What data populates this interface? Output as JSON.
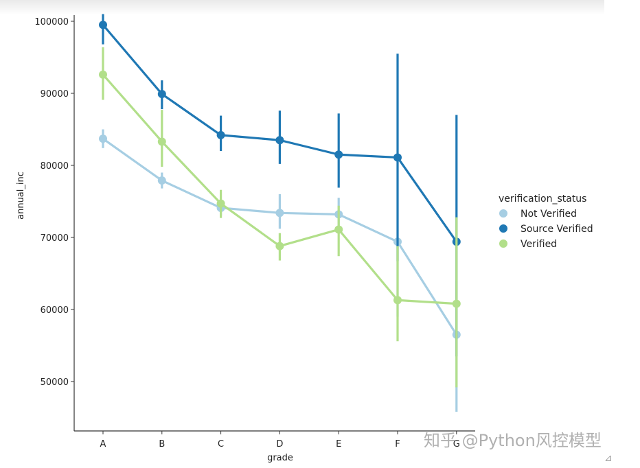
{
  "chart_data": {
    "type": "line",
    "title": "",
    "xlabel": "grade",
    "ylabel": "annual_inc",
    "categories": [
      "A",
      "B",
      "C",
      "D",
      "E",
      "F",
      "G"
    ],
    "ylim": [
      43000,
      101000
    ],
    "yticks": [
      50000,
      60000,
      70000,
      80000,
      90000,
      100000
    ],
    "ytick_labels": [
      "50000",
      "60000",
      "70000",
      "80000",
      "90000",
      "100000"
    ],
    "grid": false,
    "legend": {
      "title": "verification_status",
      "placement": "right"
    },
    "series": [
      {
        "name": "Not Verified",
        "color": "#a6cee3",
        "values": [
          83700,
          77900,
          74100,
          73400,
          73200,
          69400,
          56500
        ],
        "ci_low": [
          82400,
          76800,
          73000,
          71200,
          71000,
          59000,
          45800
        ],
        "ci_high": [
          85000,
          79000,
          75200,
          76000,
          75500,
          69800,
          64000
        ]
      },
      {
        "name": "Source Verified",
        "color": "#1f78b4",
        "values": [
          99500,
          89900,
          84200,
          83500,
          81500,
          81100,
          69400
        ],
        "ci_low": [
          96800,
          87800,
          82000,
          80200,
          76900,
          66700,
          53500
        ],
        "ci_high": [
          101000,
          91800,
          86900,
          87600,
          87200,
          95500,
          87000
        ]
      },
      {
        "name": "Verified",
        "color": "#b2df8a",
        "values": [
          92600,
          83300,
          74700,
          68800,
          71100,
          61300,
          60800
        ],
        "ci_low": [
          89100,
          79800,
          72700,
          66800,
          67400,
          55600,
          49200
        ],
        "ci_high": [
          96400,
          87700,
          76600,
          70600,
          74400,
          68800,
          72800
        ]
      }
    ]
  },
  "watermark": "知乎 @Python风控模型",
  "corner_mark": "⊿"
}
